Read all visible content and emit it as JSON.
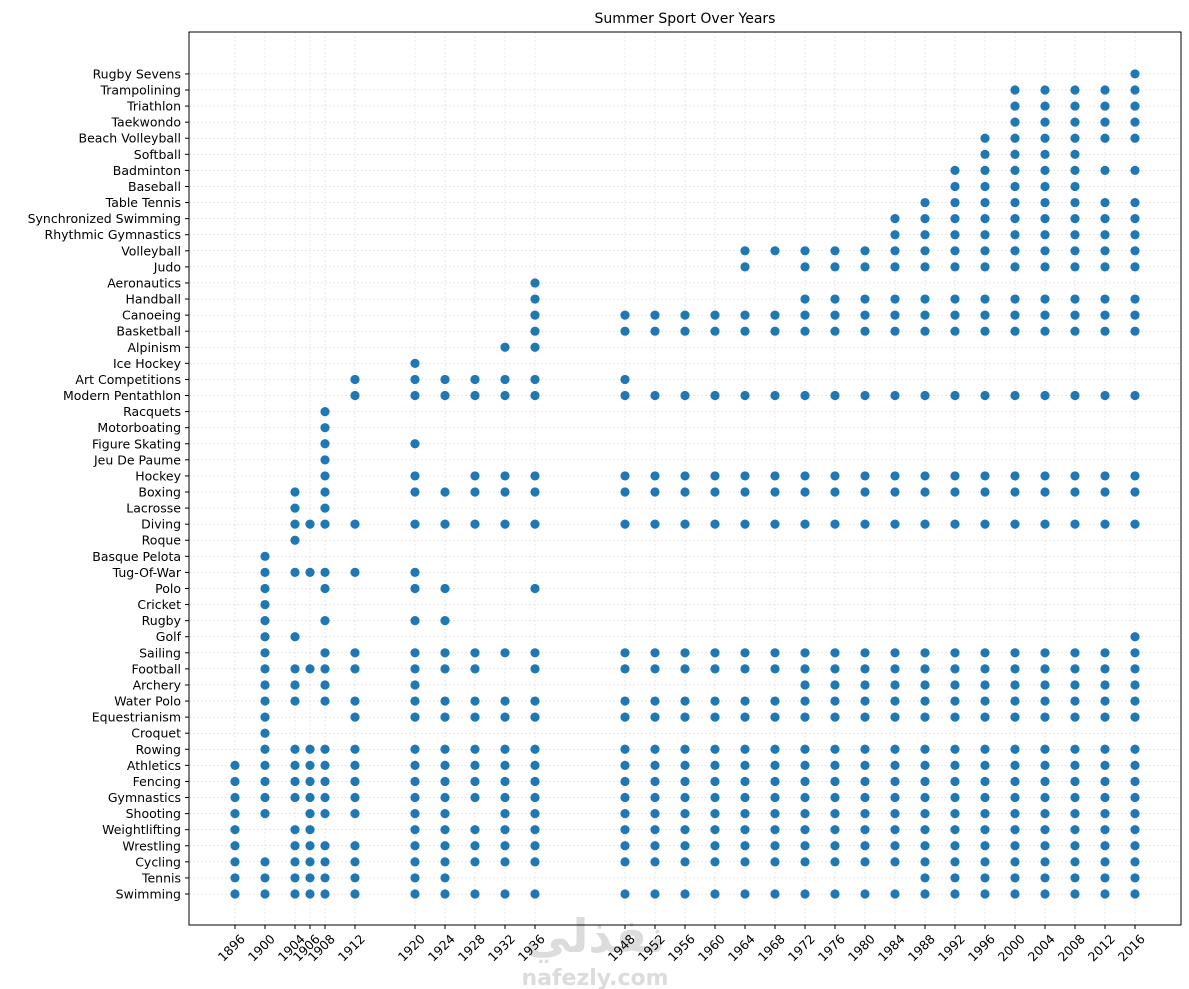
{
  "chart_data": {
    "type": "scatter",
    "title": "Summer Sport Over Years",
    "xlabel": "",
    "ylabel": "",
    "grid": true,
    "x_ticks": [
      1896,
      1900,
      1904,
      1906,
      1908,
      1912,
      1920,
      1924,
      1928,
      1932,
      1936,
      1948,
      1952,
      1956,
      1960,
      1964,
      1968,
      1972,
      1976,
      1980,
      1984,
      1988,
      1992,
      1996,
      2000,
      2004,
      2008,
      2012,
      2016
    ],
    "x_tick_rotation_deg": 45,
    "categories": [
      "Swimming",
      "Tennis",
      "Cycling",
      "Wrestling",
      "Weightlifting",
      "Shooting",
      "Gymnastics",
      "Fencing",
      "Athletics",
      "Rowing",
      "Croquet",
      "Equestrianism",
      "Water Polo",
      "Archery",
      "Football",
      "Sailing",
      "Golf",
      "Rugby",
      "Cricket",
      "Polo",
      "Tug-Of-War",
      "Basque Pelota",
      "Roque",
      "Diving",
      "Lacrosse",
      "Boxing",
      "Hockey",
      "Jeu De Paume",
      "Figure Skating",
      "Motorboating",
      "Racquets",
      "Modern Pentathlon",
      "Art Competitions",
      "Ice Hockey",
      "Alpinism",
      "Basketball",
      "Canoeing",
      "Handball",
      "Aeronautics",
      "Judo",
      "Volleyball",
      "Rhythmic Gymnastics",
      "Synchronized Swimming",
      "Table Tennis",
      "Baseball",
      "Badminton",
      "Softball",
      "Beach Volleyball",
      "Taekwondo",
      "Triathlon",
      "Trampolining",
      "Rugby Sevens"
    ],
    "marker_color": "#1f77b4",
    "series": [
      {
        "sport": "Swimming",
        "years": [
          1896,
          1900,
          1904,
          1906,
          1908,
          1912,
          1920,
          1924,
          1928,
          1932,
          1936,
          1948,
          1952,
          1956,
          1960,
          1964,
          1968,
          1972,
          1976,
          1980,
          1984,
          1988,
          1992,
          1996,
          2000,
          2004,
          2008,
          2012,
          2016
        ]
      },
      {
        "sport": "Tennis",
        "years": [
          1896,
          1900,
          1904,
          1906,
          1908,
          1912,
          1920,
          1924,
          1988,
          1992,
          1996,
          2000,
          2004,
          2008,
          2012,
          2016
        ]
      },
      {
        "sport": "Cycling",
        "years": [
          1896,
          1900,
          1904,
          1906,
          1908,
          1912,
          1920,
          1924,
          1928,
          1932,
          1936,
          1948,
          1952,
          1956,
          1960,
          1964,
          1968,
          1972,
          1976,
          1980,
          1984,
          1988,
          1992,
          1996,
          2000,
          2004,
          2008,
          2012,
          2016
        ]
      },
      {
        "sport": "Wrestling",
        "years": [
          1896,
          1904,
          1906,
          1908,
          1912,
          1920,
          1924,
          1928,
          1932,
          1936,
          1948,
          1952,
          1956,
          1960,
          1964,
          1968,
          1972,
          1976,
          1980,
          1984,
          1988,
          1992,
          1996,
          2000,
          2004,
          2008,
          2012,
          2016
        ]
      },
      {
        "sport": "Weightlifting",
        "years": [
          1896,
          1904,
          1906,
          1920,
          1924,
          1928,
          1932,
          1936,
          1948,
          1952,
          1956,
          1960,
          1964,
          1968,
          1972,
          1976,
          1980,
          1984,
          1988,
          1992,
          1996,
          2000,
          2004,
          2008,
          2012,
          2016
        ]
      },
      {
        "sport": "Shooting",
        "years": [
          1896,
          1900,
          1906,
          1908,
          1912,
          1920,
          1924,
          1932,
          1936,
          1948,
          1952,
          1956,
          1960,
          1964,
          1968,
          1972,
          1976,
          1980,
          1984,
          1988,
          1992,
          1996,
          2000,
          2004,
          2008,
          2012,
          2016
        ]
      },
      {
        "sport": "Gymnastics",
        "years": [
          1896,
          1900,
          1904,
          1906,
          1908,
          1912,
          1920,
          1924,
          1928,
          1932,
          1936,
          1948,
          1952,
          1956,
          1960,
          1964,
          1968,
          1972,
          1976,
          1980,
          1984,
          1988,
          1992,
          1996,
          2000,
          2004,
          2008,
          2012,
          2016
        ]
      },
      {
        "sport": "Fencing",
        "years": [
          1896,
          1900,
          1904,
          1906,
          1908,
          1912,
          1920,
          1924,
          1928,
          1932,
          1936,
          1948,
          1952,
          1956,
          1960,
          1964,
          1968,
          1972,
          1976,
          1980,
          1984,
          1988,
          1992,
          1996,
          2000,
          2004,
          2008,
          2012,
          2016
        ]
      },
      {
        "sport": "Athletics",
        "years": [
          1896,
          1900,
          1904,
          1906,
          1908,
          1912,
          1920,
          1924,
          1928,
          1932,
          1936,
          1948,
          1952,
          1956,
          1960,
          1964,
          1968,
          1972,
          1976,
          1980,
          1984,
          1988,
          1992,
          1996,
          2000,
          2004,
          2008,
          2012,
          2016
        ]
      },
      {
        "sport": "Rowing",
        "years": [
          1900,
          1904,
          1906,
          1908,
          1912,
          1920,
          1924,
          1928,
          1932,
          1936,
          1948,
          1952,
          1956,
          1960,
          1964,
          1968,
          1972,
          1976,
          1980,
          1984,
          1988,
          1992,
          1996,
          2000,
          2004,
          2008,
          2012,
          2016
        ]
      },
      {
        "sport": "Croquet",
        "years": [
          1900
        ]
      },
      {
        "sport": "Equestrianism",
        "years": [
          1900,
          1912,
          1920,
          1924,
          1928,
          1932,
          1936,
          1948,
          1952,
          1956,
          1960,
          1964,
          1968,
          1972,
          1976,
          1980,
          1984,
          1988,
          1992,
          1996,
          2000,
          2004,
          2008,
          2012,
          2016
        ]
      },
      {
        "sport": "Water Polo",
        "years": [
          1900,
          1904,
          1908,
          1912,
          1920,
          1924,
          1928,
          1932,
          1936,
          1948,
          1952,
          1956,
          1960,
          1964,
          1968,
          1972,
          1976,
          1980,
          1984,
          1988,
          1992,
          1996,
          2000,
          2004,
          2008,
          2012,
          2016
        ]
      },
      {
        "sport": "Archery",
        "years": [
          1900,
          1904,
          1908,
          1920,
          1972,
          1976,
          1980,
          1984,
          1988,
          1992,
          1996,
          2000,
          2004,
          2008,
          2012,
          2016
        ]
      },
      {
        "sport": "Football",
        "years": [
          1900,
          1904,
          1906,
          1908,
          1912,
          1920,
          1924,
          1928,
          1936,
          1948,
          1952,
          1956,
          1960,
          1964,
          1968,
          1972,
          1976,
          1980,
          1984,
          1988,
          1992,
          1996,
          2000,
          2004,
          2008,
          2012,
          2016
        ]
      },
      {
        "sport": "Sailing",
        "years": [
          1900,
          1908,
          1912,
          1920,
          1924,
          1928,
          1932,
          1936,
          1948,
          1952,
          1956,
          1960,
          1964,
          1968,
          1972,
          1976,
          1980,
          1984,
          1988,
          1992,
          1996,
          2000,
          2004,
          2008,
          2012,
          2016
        ]
      },
      {
        "sport": "Golf",
        "years": [
          1900,
          1904,
          2016
        ]
      },
      {
        "sport": "Rugby",
        "years": [
          1900,
          1908,
          1920,
          1924
        ]
      },
      {
        "sport": "Cricket",
        "years": [
          1900
        ]
      },
      {
        "sport": "Polo",
        "years": [
          1900,
          1908,
          1920,
          1924,
          1936
        ]
      },
      {
        "sport": "Tug-Of-War",
        "years": [
          1900,
          1904,
          1906,
          1908,
          1912,
          1920
        ]
      },
      {
        "sport": "Basque Pelota",
        "years": [
          1900
        ]
      },
      {
        "sport": "Roque",
        "years": [
          1904
        ]
      },
      {
        "sport": "Diving",
        "years": [
          1904,
          1906,
          1908,
          1912,
          1920,
          1924,
          1928,
          1932,
          1936,
          1948,
          1952,
          1956,
          1960,
          1964,
          1968,
          1972,
          1976,
          1980,
          1984,
          1988,
          1992,
          1996,
          2000,
          2004,
          2008,
          2012,
          2016
        ]
      },
      {
        "sport": "Lacrosse",
        "years": [
          1904,
          1908
        ]
      },
      {
        "sport": "Boxing",
        "years": [
          1904,
          1908,
          1920,
          1924,
          1928,
          1932,
          1936,
          1948,
          1952,
          1956,
          1960,
          1964,
          1968,
          1972,
          1976,
          1980,
          1984,
          1988,
          1992,
          1996,
          2000,
          2004,
          2008,
          2012,
          2016
        ]
      },
      {
        "sport": "Hockey",
        "years": [
          1908,
          1920,
          1928,
          1932,
          1936,
          1948,
          1952,
          1956,
          1960,
          1964,
          1968,
          1972,
          1976,
          1980,
          1984,
          1988,
          1992,
          1996,
          2000,
          2004,
          2008,
          2012,
          2016
        ]
      },
      {
        "sport": "Jeu De Paume",
        "years": [
          1908
        ]
      },
      {
        "sport": "Figure Skating",
        "years": [
          1908,
          1920
        ]
      },
      {
        "sport": "Motorboating",
        "years": [
          1908
        ]
      },
      {
        "sport": "Racquets",
        "years": [
          1908
        ]
      },
      {
        "sport": "Modern Pentathlon",
        "years": [
          1912,
          1920,
          1924,
          1928,
          1932,
          1936,
          1948,
          1952,
          1956,
          1960,
          1964,
          1968,
          1972,
          1976,
          1980,
          1984,
          1988,
          1992,
          1996,
          2000,
          2004,
          2008,
          2012,
          2016
        ]
      },
      {
        "sport": "Art Competitions",
        "years": [
          1912,
          1920,
          1924,
          1928,
          1932,
          1936,
          1948
        ]
      },
      {
        "sport": "Ice Hockey",
        "years": [
          1920
        ]
      },
      {
        "sport": "Alpinism",
        "years": [
          1932,
          1936
        ]
      },
      {
        "sport": "Basketball",
        "years": [
          1936,
          1948,
          1952,
          1956,
          1960,
          1964,
          1968,
          1972,
          1976,
          1980,
          1984,
          1988,
          1992,
          1996,
          2000,
          2004,
          2008,
          2012,
          2016
        ]
      },
      {
        "sport": "Canoeing",
        "years": [
          1936,
          1948,
          1952,
          1956,
          1960,
          1964,
          1968,
          1972,
          1976,
          1980,
          1984,
          1988,
          1992,
          1996,
          2000,
          2004,
          2008,
          2012,
          2016
        ]
      },
      {
        "sport": "Handball",
        "years": [
          1936,
          1972,
          1976,
          1980,
          1984,
          1988,
          1992,
          1996,
          2000,
          2004,
          2008,
          2012,
          2016
        ]
      },
      {
        "sport": "Aeronautics",
        "years": [
          1936
        ]
      },
      {
        "sport": "Judo",
        "years": [
          1964,
          1972,
          1976,
          1980,
          1984,
          1988,
          1992,
          1996,
          2000,
          2004,
          2008,
          2012,
          2016
        ]
      },
      {
        "sport": "Volleyball",
        "years": [
          1964,
          1968,
          1972,
          1976,
          1980,
          1984,
          1988,
          1992,
          1996,
          2000,
          2004,
          2008,
          2012,
          2016
        ]
      },
      {
        "sport": "Rhythmic Gymnastics",
        "years": [
          1984,
          1988,
          1992,
          1996,
          2000,
          2004,
          2008,
          2012,
          2016
        ]
      },
      {
        "sport": "Synchronized Swimming",
        "years": [
          1984,
          1988,
          1992,
          1996,
          2000,
          2004,
          2008,
          2012,
          2016
        ]
      },
      {
        "sport": "Table Tennis",
        "years": [
          1988,
          1992,
          1996,
          2000,
          2004,
          2008,
          2012,
          2016
        ]
      },
      {
        "sport": "Baseball",
        "years": [
          1992,
          1996,
          2000,
          2004,
          2008
        ]
      },
      {
        "sport": "Badminton",
        "years": [
          1992,
          1996,
          2000,
          2004,
          2008,
          2012,
          2016
        ]
      },
      {
        "sport": "Softball",
        "years": [
          1996,
          2000,
          2004,
          2008
        ]
      },
      {
        "sport": "Beach Volleyball",
        "years": [
          1996,
          2000,
          2004,
          2008,
          2012,
          2016
        ]
      },
      {
        "sport": "Taekwondo",
        "years": [
          2000,
          2004,
          2008,
          2012,
          2016
        ]
      },
      {
        "sport": "Triathlon",
        "years": [
          2000,
          2004,
          2008,
          2012,
          2016
        ]
      },
      {
        "sport": "Trampolining",
        "years": [
          2000,
          2004,
          2008,
          2012,
          2016
        ]
      },
      {
        "sport": "Rugby Sevens",
        "years": [
          2016
        ]
      }
    ]
  },
  "watermark": {
    "main": "نفذلي",
    "sub": "nafezly.com",
    "color": "#dcdcdc"
  }
}
